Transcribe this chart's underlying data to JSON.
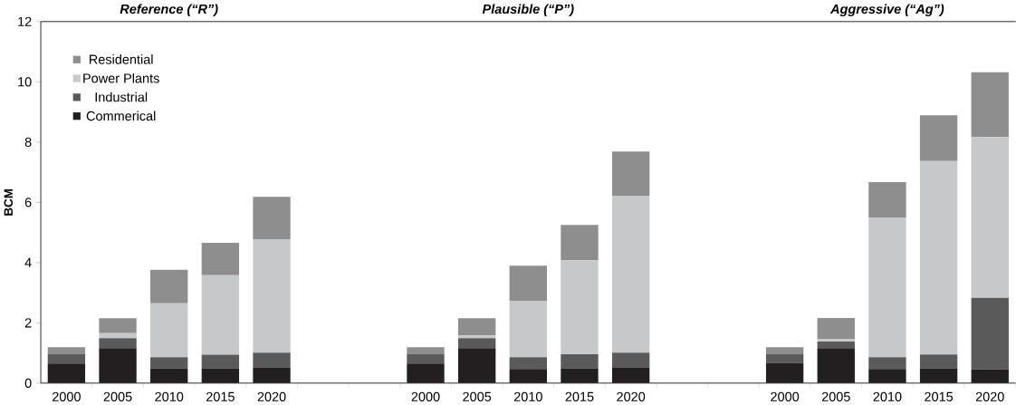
{
  "chart_data": {
    "type": "bar",
    "stacked": true,
    "ylabel": "BCM",
    "annotations": [
      "Reference (“R”)",
      "Plausible (“P”)",
      "Aggressive (“Ag”)"
    ],
    "categories": [
      "2000",
      "2005",
      "2010",
      "2015",
      "2020",
      null,
      null,
      "2000",
      "2005",
      "2010",
      "2015",
      "2020",
      null,
      null,
      "2000",
      "2005",
      "2010",
      "2015",
      "2020"
    ],
    "series": [
      {
        "name": "Commerical",
        "color": "#231f20",
        "values": [
          0.65,
          1.16,
          0.49,
          0.49,
          0.51,
          null,
          null,
          0.65,
          1.16,
          0.47,
          0.49,
          0.51,
          null,
          null,
          0.67,
          1.16,
          0.47,
          0.49,
          0.45
        ]
      },
      {
        "name": "Industrial",
        "color": "#5a5a5a",
        "values": [
          0.32,
          0.33,
          0.37,
          0.45,
          0.5,
          null,
          null,
          0.32,
          0.33,
          0.39,
          0.47,
          0.5,
          null,
          null,
          0.29,
          0.22,
          0.39,
          0.46,
          2.38
        ]
      },
      {
        "name": "Power Plants",
        "color": "#c7c8ca",
        "values": [
          0,
          0.17,
          1.79,
          2.64,
          3.75,
          null,
          null,
          0,
          0.09,
          1.87,
          3.12,
          5.21,
          null,
          null,
          0,
          0.07,
          4.64,
          6.42,
          5.34
        ]
      },
      {
        "name": "Residential",
        "color": "#8e8e8e",
        "values": [
          0.22,
          0.49,
          1.11,
          1.08,
          1.42,
          null,
          null,
          0.22,
          0.57,
          1.17,
          1.17,
          1.47,
          null,
          null,
          0.23,
          0.71,
          1.17,
          1.52,
          2.15
        ]
      }
    ],
    "ylim": [
      0,
      12
    ],
    "yticks": [
      0,
      2,
      4,
      6,
      8,
      10,
      12
    ],
    "legend": "top left"
  }
}
